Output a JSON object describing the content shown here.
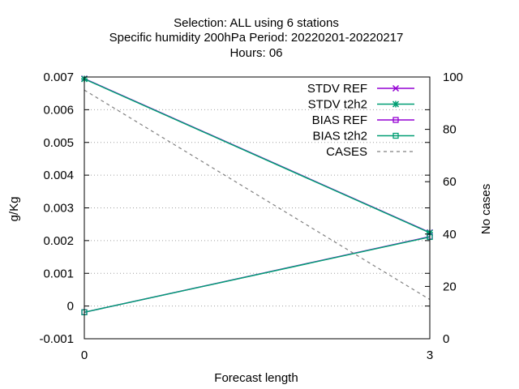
{
  "chart_data": {
    "type": "line",
    "title_lines": [
      "Selection: ALL using      6 stations",
      "Specific humidity 200hPa   Period: 20220201-20220217",
      "Hours:  06"
    ],
    "xlabel": "Forecast length",
    "ylabel": "g/Kg",
    "y2label": "No cases",
    "x_ticks": [
      "0",
      "3"
    ],
    "xlim": [
      0,
      3
    ],
    "ylim": [
      -0.001,
      0.007
    ],
    "y_ticks": [
      "-0.001",
      "0",
      "0.001",
      "0.002",
      "0.003",
      "0.004",
      "0.005",
      "0.006",
      "0.007"
    ],
    "y2lim": [
      0,
      100
    ],
    "y2_ticks": [
      "0",
      "20",
      "40",
      "60",
      "80",
      "100"
    ],
    "grid": "horizontal dotted",
    "legend_position": "top-right",
    "x": [
      0,
      3
    ],
    "series": [
      {
        "name": "STDV REF",
        "axis": "y1",
        "values": [
          0.00695,
          0.00225
        ],
        "color": "#9400d3",
        "marker": "x"
      },
      {
        "name": "STDV t2h2",
        "axis": "y1",
        "values": [
          0.00694,
          0.00224
        ],
        "color": "#009e73",
        "marker": "star"
      },
      {
        "name": "BIAS REF",
        "axis": "y1",
        "values": [
          -0.00019,
          0.00212
        ],
        "color": "#9400d3",
        "marker": "square"
      },
      {
        "name": "BIAS t2h2",
        "axis": "y1",
        "values": [
          -0.00019,
          0.00211
        ],
        "color": "#009e73",
        "marker": "square"
      },
      {
        "name": "CASES",
        "axis": "y2",
        "values": [
          95,
          15
        ],
        "color": "#808080",
        "marker": "none",
        "dash": true
      }
    ]
  }
}
